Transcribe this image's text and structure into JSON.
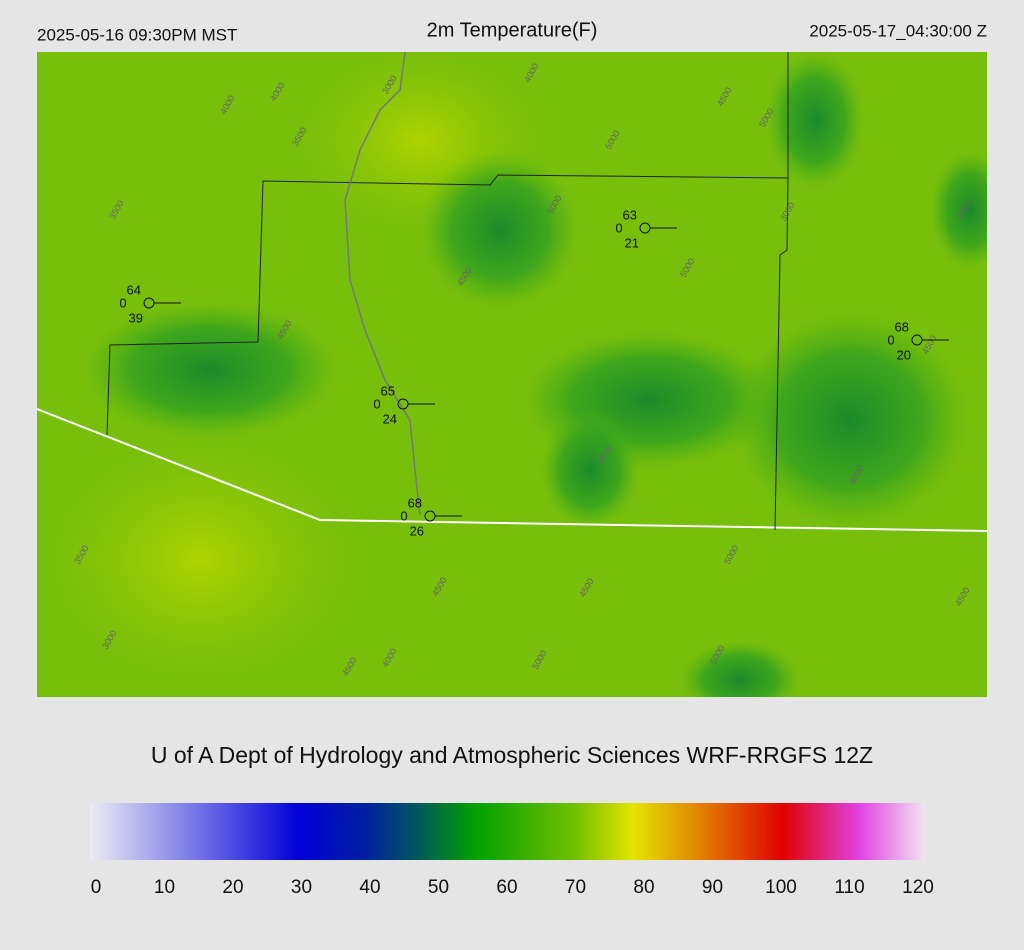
{
  "header": {
    "valid_local": "2025-05-16 09:30PM MST",
    "title": "2m Temperature(F)",
    "valid_utc": "2025-05-17_04:30:00 Z"
  },
  "stations": [
    {
      "temperature": "64",
      "wind": "0",
      "dewpoint": "39"
    },
    {
      "temperature": "63",
      "wind": "0",
      "dewpoint": "21"
    },
    {
      "temperature": "65",
      "wind": "0",
      "dewpoint": "24"
    },
    {
      "temperature": "68",
      "wind": "0",
      "dewpoint": "26"
    },
    {
      "temperature": "68",
      "wind": "0",
      "dewpoint": "20"
    }
  ],
  "contour_labels": [
    "4000",
    "4000",
    "3500",
    "3000",
    "3500",
    "4000",
    "4500",
    "5000",
    "4500",
    "5000",
    "5000",
    "4000",
    "4500",
    "3500",
    "3000",
    "4500",
    "4000",
    "4500",
    "5000",
    "5000",
    "4500",
    "4500",
    "5000",
    "6000",
    "4500",
    "5000",
    "3000",
    "3500"
  ],
  "footer": "U of A Dept of Hydrology and Atmospheric Sciences WRF-RRGFS 12Z",
  "colorbar": {
    "range": [
      0,
      120
    ],
    "ticks": [
      0,
      10,
      20,
      30,
      40,
      50,
      60,
      70,
      80,
      90,
      100,
      110,
      120
    ]
  }
}
